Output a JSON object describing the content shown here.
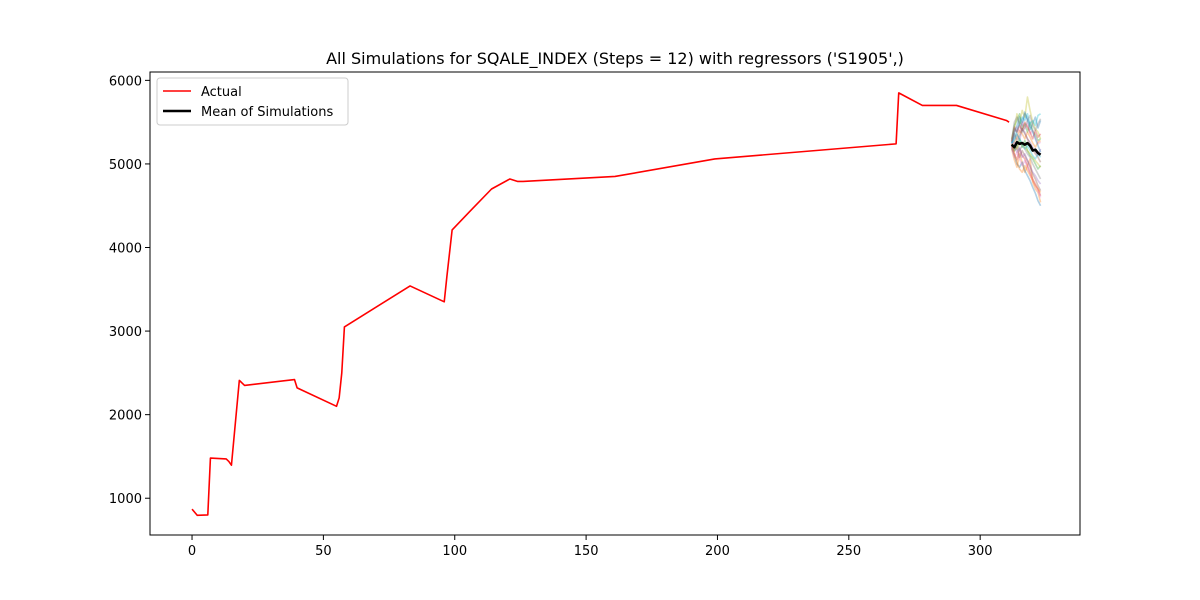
{
  "chart_data": {
    "type": "line",
    "title": "All Simulations for SQALE_INDEX (Steps = 12) with regressors ('S1905',)",
    "xlabel": "",
    "ylabel": "",
    "xlim": [
      -16,
      338
    ],
    "ylim": [
      560,
      6100
    ],
    "x_ticks": [
      0,
      50,
      100,
      150,
      200,
      250,
      300
    ],
    "y_ticks": [
      1000,
      2000,
      3000,
      4000,
      5000,
      6000
    ],
    "x_tick_labels": [
      "0",
      "50",
      "100",
      "150",
      "200",
      "250",
      "300"
    ],
    "y_tick_labels": [
      "1000",
      "2000",
      "3000",
      "4000",
      "5000",
      "6000"
    ],
    "grid": false,
    "legend_position": "upper left",
    "series": [
      {
        "name": "Actual",
        "color": "#ff0000",
        "x": [
          0,
          2,
          6,
          7,
          13,
          14,
          15,
          18,
          20,
          39,
          40,
          55,
          56,
          57,
          58,
          83,
          96,
          97,
          99,
          106,
          114,
          121,
          124,
          126,
          161,
          199,
          268,
          269,
          278,
          291,
          310,
          311
        ],
        "y": [
          870,
          795,
          800,
          1480,
          1470,
          1440,
          1395,
          2410,
          2350,
          2420,
          2320,
          2100,
          2200,
          2500,
          3050,
          3540,
          3350,
          3650,
          4210,
          4440,
          4700,
          4820,
          4790,
          4790,
          4850,
          5060,
          5240,
          5850,
          5700,
          5700,
          5520,
          5500
        ]
      },
      {
        "name": "Mean of Simulations",
        "color": "#000000",
        "x": [
          312,
          313,
          314,
          315,
          316,
          317,
          318,
          319,
          320,
          321,
          322,
          323
        ],
        "y": [
          5230,
          5200,
          5260,
          5240,
          5250,
          5230,
          5250,
          5220,
          5160,
          5170,
          5130,
          5110
        ]
      }
    ],
    "simulations": {
      "x": [
        312,
        313,
        314,
        315,
        316,
        317,
        318,
        319,
        320,
        321,
        322,
        323
      ],
      "colors": [
        "#1f77b4",
        "#ff7f0e",
        "#2ca02c",
        "#d62728",
        "#9467bd",
        "#8c564b",
        "#e377c2",
        "#7f7f7f",
        "#bcbd22",
        "#17becf"
      ],
      "runs": [
        [
          5250,
          5420,
          5380,
          5510,
          5460,
          5600,
          5520,
          5410,
          5480,
          5560,
          5430,
          5520
        ],
        [
          5180,
          5050,
          4960,
          5120,
          5020,
          4900,
          4980,
          5060,
          4780,
          4700,
          4660,
          4540
        ],
        [
          5300,
          5460,
          5520,
          5600,
          5420,
          5480,
          5380,
          5500,
          5400,
          5350,
          5280,
          5300
        ],
        [
          5200,
          5120,
          5050,
          5180,
          5100,
          5060,
          4980,
          4900,
          4820,
          4760,
          4700,
          4620
        ],
        [
          5240,
          5300,
          5360,
          5280,
          5420,
          5380,
          5300,
          5260,
          5200,
          5150,
          5100,
          5180
        ],
        [
          5210,
          5150,
          5200,
          5080,
          5160,
          5100,
          5040,
          4960,
          4880,
          4820,
          4740,
          4680
        ],
        [
          5260,
          5380,
          5440,
          5380,
          5500,
          5420,
          5480,
          5360,
          5400,
          5320,
          5240,
          5260
        ],
        [
          5220,
          5180,
          5240,
          5160,
          5220,
          5180,
          5120,
          5080,
          5000,
          4940,
          4880,
          4820
        ],
        [
          5270,
          5400,
          5600,
          5480,
          5640,
          5560,
          5800,
          5640,
          5500,
          5420,
          5380,
          5300
        ],
        [
          5250,
          5320,
          5400,
          5480,
          5560,
          5520,
          5600,
          5480,
          5520,
          5460,
          5580,
          5600
        ],
        [
          5190,
          5100,
          5000,
          4960,
          5020,
          4920,
          4860,
          4800,
          4720,
          4650,
          4560,
          4500
        ],
        [
          5230,
          5260,
          5320,
          5400,
          5360,
          5300,
          5380,
          5320,
          5250,
          5200,
          5260,
          5280
        ],
        [
          5240,
          5160,
          5220,
          5300,
          5200,
          5280,
          5160,
          5100,
          5060,
          5000,
          4940,
          4980
        ],
        [
          5280,
          5440,
          5380,
          5460,
          5400,
          5500,
          5440,
          5380,
          5300,
          5400,
          5320,
          5360
        ],
        [
          5200,
          5260,
          5140,
          5200,
          5080,
          5120,
          5040,
          4980,
          4900,
          4860,
          4800,
          4760
        ],
        [
          5260,
          5360,
          5280,
          5340,
          5420,
          5360,
          5300,
          5240,
          5180,
          5120,
          5080,
          5020
        ],
        [
          5210,
          5080,
          5140,
          5060,
          4980,
          5040,
          4960,
          4880,
          4800,
          4740,
          4680,
          4600
        ],
        [
          5270,
          5500,
          5560,
          5480,
          5380,
          5440,
          5520,
          5580,
          5460,
          5400,
          5480,
          5540
        ],
        [
          5230,
          5220,
          5180,
          5260,
          5240,
          5200,
          5160,
          5120,
          5080,
          5040,
          5000,
          4960
        ],
        [
          5250,
          5280,
          5360,
          5300,
          5240,
          5180,
          5220,
          5160,
          5100,
          5060,
          5120,
          5080
        ],
        [
          5220,
          5380,
          5460,
          5560,
          5500,
          5620,
          5540,
          5460,
          5380,
          5300,
          5220,
          5140
        ],
        [
          5240,
          5120,
          5020,
          4940,
          4900,
          4980,
          4920,
          4860,
          4800,
          4740,
          4700,
          4660
        ]
      ]
    }
  }
}
